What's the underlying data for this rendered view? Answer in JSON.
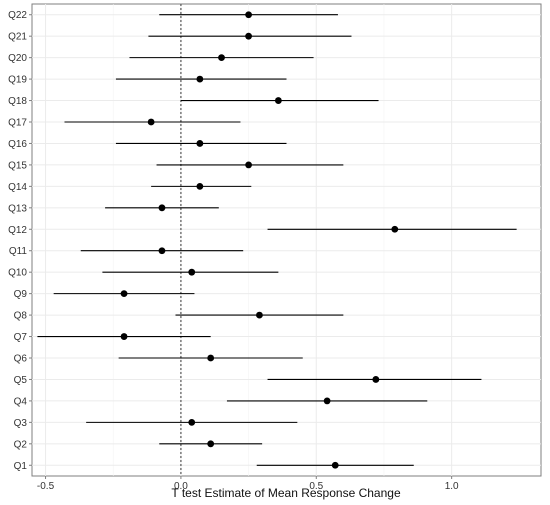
{
  "chart_data": {
    "type": "forest",
    "xlabel": "T test Estimate of Mean Response Change",
    "ylabel": "",
    "xlim": [
      -0.55,
      1.33
    ],
    "x_ticks": [
      -0.5,
      0.0,
      0.5,
      1.0
    ],
    "x_tick_labels": [
      "-0.5",
      "0.0",
      "0.5",
      "1.0"
    ],
    "reference_line": 0,
    "grid": true,
    "categories": [
      "Q1",
      "Q2",
      "Q3",
      "Q4",
      "Q5",
      "Q6",
      "Q7",
      "Q8",
      "Q9",
      "Q10",
      "Q11",
      "Q12",
      "Q13",
      "Q14",
      "Q15",
      "Q16",
      "Q17",
      "Q18",
      "Q19",
      "Q20",
      "Q21",
      "Q22"
    ],
    "estimates": [
      0.57,
      0.11,
      0.04,
      0.54,
      0.72,
      0.11,
      -0.21,
      0.29,
      -0.21,
      0.04,
      -0.07,
      0.79,
      -0.07,
      0.07,
      0.25,
      0.07,
      -0.11,
      0.36,
      0.07,
      0.15,
      0.25,
      0.25
    ],
    "lower": [
      0.28,
      -0.08,
      -0.35,
      0.17,
      0.32,
      -0.23,
      -0.53,
      -0.02,
      -0.47,
      -0.29,
      -0.37,
      0.32,
      -0.28,
      -0.11,
      -0.09,
      -0.24,
      -0.43,
      0.0,
      -0.24,
      -0.19,
      -0.12,
      -0.08
    ],
    "upper": [
      0.86,
      0.3,
      0.43,
      0.91,
      1.11,
      0.45,
      0.11,
      0.6,
      0.05,
      0.36,
      0.23,
      1.24,
      0.14,
      0.26,
      0.6,
      0.39,
      0.22,
      0.73,
      0.39,
      0.49,
      0.63,
      0.58
    ]
  }
}
